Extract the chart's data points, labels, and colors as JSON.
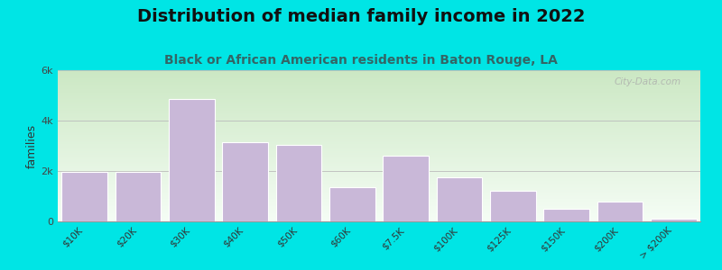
{
  "title": "Distribution of median family income in 2022",
  "subtitle": "Black or African American residents in Baton Rouge, LA",
  "ylabel": "families",
  "categories": [
    "$10K",
    "$20K",
    "$30K",
    "$40K",
    "$50K",
    "$60K",
    "$7.5K",
    "$100K",
    "$125K",
    "$150K",
    "$200K",
    "> $200K"
  ],
  "values": [
    1950,
    1950,
    4850,
    3150,
    3050,
    1350,
    2600,
    1750,
    1200,
    500,
    800,
    100
  ],
  "bar_color": "#c9b8d8",
  "bar_edge_color": "#ffffff",
  "background_color": "#00e5e5",
  "plot_bg_top": "#cce8c4",
  "plot_bg_bottom": "#f5fdf5",
  "ylim": [
    0,
    6000
  ],
  "yticks": [
    0,
    2000,
    4000,
    6000
  ],
  "ytick_labels": [
    "0",
    "2k",
    "4k",
    "6k"
  ],
  "title_fontsize": 14,
  "subtitle_fontsize": 10,
  "subtitle_color": "#336666",
  "watermark": "City-Data.com"
}
